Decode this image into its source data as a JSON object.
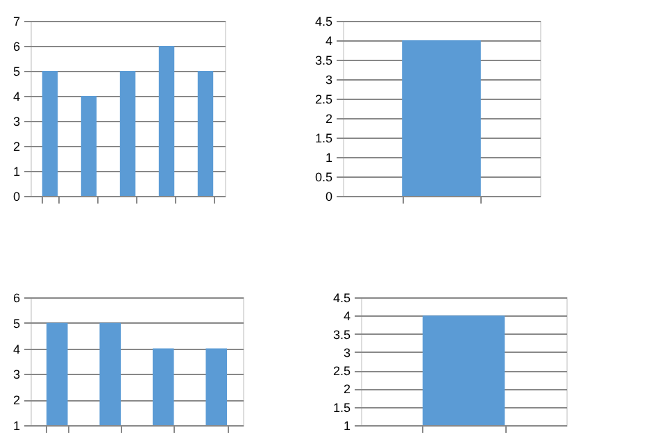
{
  "chart_data": [
    {
      "type": "bar",
      "categories": [
        null,
        null,
        null,
        null,
        null
      ],
      "values": [
        5,
        4,
        5,
        6,
        5
      ],
      "color": "#5b9bd5",
      "ylim": [
        0,
        7
      ],
      "yticks": [
        0,
        1,
        2,
        3,
        4,
        5,
        6,
        7
      ],
      "grid": "y",
      "tick_labels": "y"
    },
    {
      "type": "bar",
      "categories": [
        null
      ],
      "values": [
        4
      ],
      "color": "#5b9bd5",
      "ylim": [
        0,
        4.5
      ],
      "yticks": [
        0,
        0.5,
        1,
        1.5,
        2,
        2.5,
        3,
        3.5,
        4,
        4.5
      ],
      "grid": "y",
      "tick_labels": "y"
    },
    {
      "type": "bar",
      "categories": [
        null,
        null,
        null,
        null
      ],
      "values": [
        5,
        5,
        4,
        4
      ],
      "color": "#5b9bd5",
      "ylim": [
        1,
        6
      ],
      "yticks": [
        1,
        2,
        3,
        4,
        5,
        6
      ],
      "grid": "y",
      "tick_labels": "y"
    },
    {
      "type": "bar",
      "categories": [
        null
      ],
      "values": [
        4
      ],
      "color": "#5b9bd5",
      "ylim": [
        1,
        4.5
      ],
      "yticks": [
        1,
        1.5,
        2,
        2.5,
        3,
        3.5,
        4,
        4.5
      ],
      "grid": "y",
      "tick_labels": "y"
    }
  ]
}
